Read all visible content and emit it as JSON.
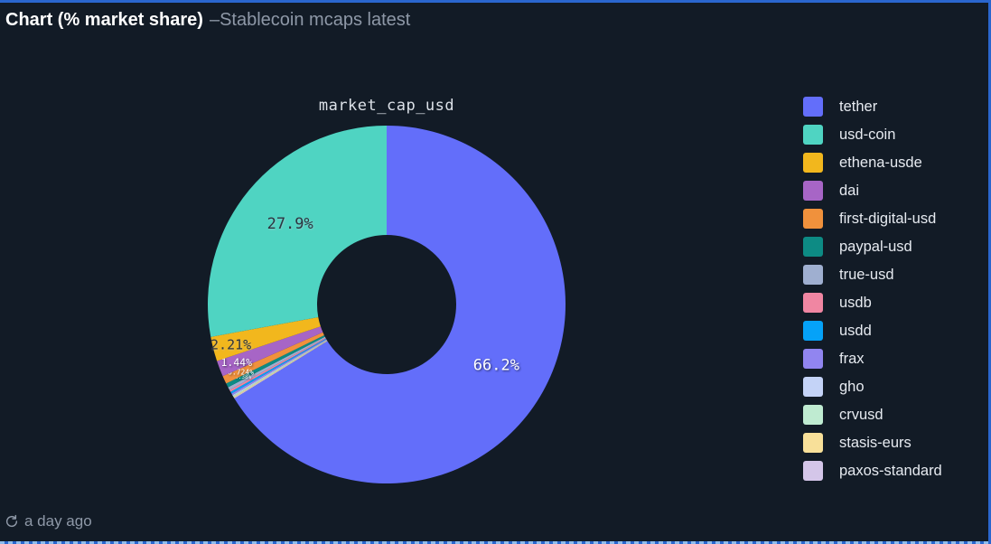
{
  "header": {
    "title": "Chart (% market share)",
    "separator": "–",
    "subtitle": "Stablecoin mcaps latest"
  },
  "footer": {
    "refreshed": "a day ago",
    "refresh_icon": "refresh-icon"
  },
  "colors": {
    "background": "#121B26",
    "panel_border": "#2A66CE",
    "selection_dash": "#8FBCEC",
    "title_text": "#FFFFFF",
    "subtitle_text": "#8E98A7",
    "legend_text": "#E6EAF0",
    "chart_title_text": "#DCE1E8",
    "label_dark": "#2E3440",
    "label_light": "#FFFFFF"
  },
  "chart_data": {
    "type": "pie",
    "title": "market_cap_usd",
    "hole_ratio": 0.39,
    "legend_position": "right",
    "grid": false,
    "slices": [
      {
        "name": "tether",
        "pct": 66.2,
        "color": "#636EFA",
        "label": "66.2%"
      },
      {
        "name": "usd-coin",
        "pct": 27.9,
        "color": "#4FD4C2",
        "label": "27.9%"
      },
      {
        "name": "ethena-usde",
        "pct": 2.21,
        "color": "#F2B71D",
        "label": "2.21%"
      },
      {
        "name": "dai",
        "pct": 1.44,
        "color": "#A765C6",
        "label": "1.44%"
      },
      {
        "name": "first-digital-usd",
        "pct": 0.724,
        "color": "#F0913C",
        "label": "0.724%"
      },
      {
        "name": "paypal-usd",
        "pct": 0.38,
        "color": "#0D8B84",
        "label": "0.38%"
      },
      {
        "name": "true-usd",
        "pct": 0.28,
        "color": "#9FAFD0"
      },
      {
        "name": "usdb",
        "pct": 0.18,
        "color": "#F086A2"
      },
      {
        "name": "usdd",
        "pct": 0.17,
        "color": "#05A2F8"
      },
      {
        "name": "frax",
        "pct": 0.16,
        "color": "#9185F0"
      },
      {
        "name": "gho",
        "pct": 0.1,
        "color": "#C4D3F7"
      },
      {
        "name": "crvusd",
        "pct": 0.09,
        "color": "#BFEBD1"
      },
      {
        "name": "stasis-eurs",
        "pct": 0.09,
        "color": "#F8E099"
      },
      {
        "name": "paxos-standard",
        "pct": 0.076,
        "color": "#D4C6E9"
      }
    ],
    "visual_order_clockwise_from_top": [
      "tether",
      "paxos-standard",
      "stasis-eurs",
      "crvusd",
      "gho",
      "frax",
      "usdd",
      "usdb",
      "true-usd",
      "paypal-usd",
      "first-digital-usd",
      "dai",
      "ethena-usde",
      "usd-coin"
    ]
  }
}
